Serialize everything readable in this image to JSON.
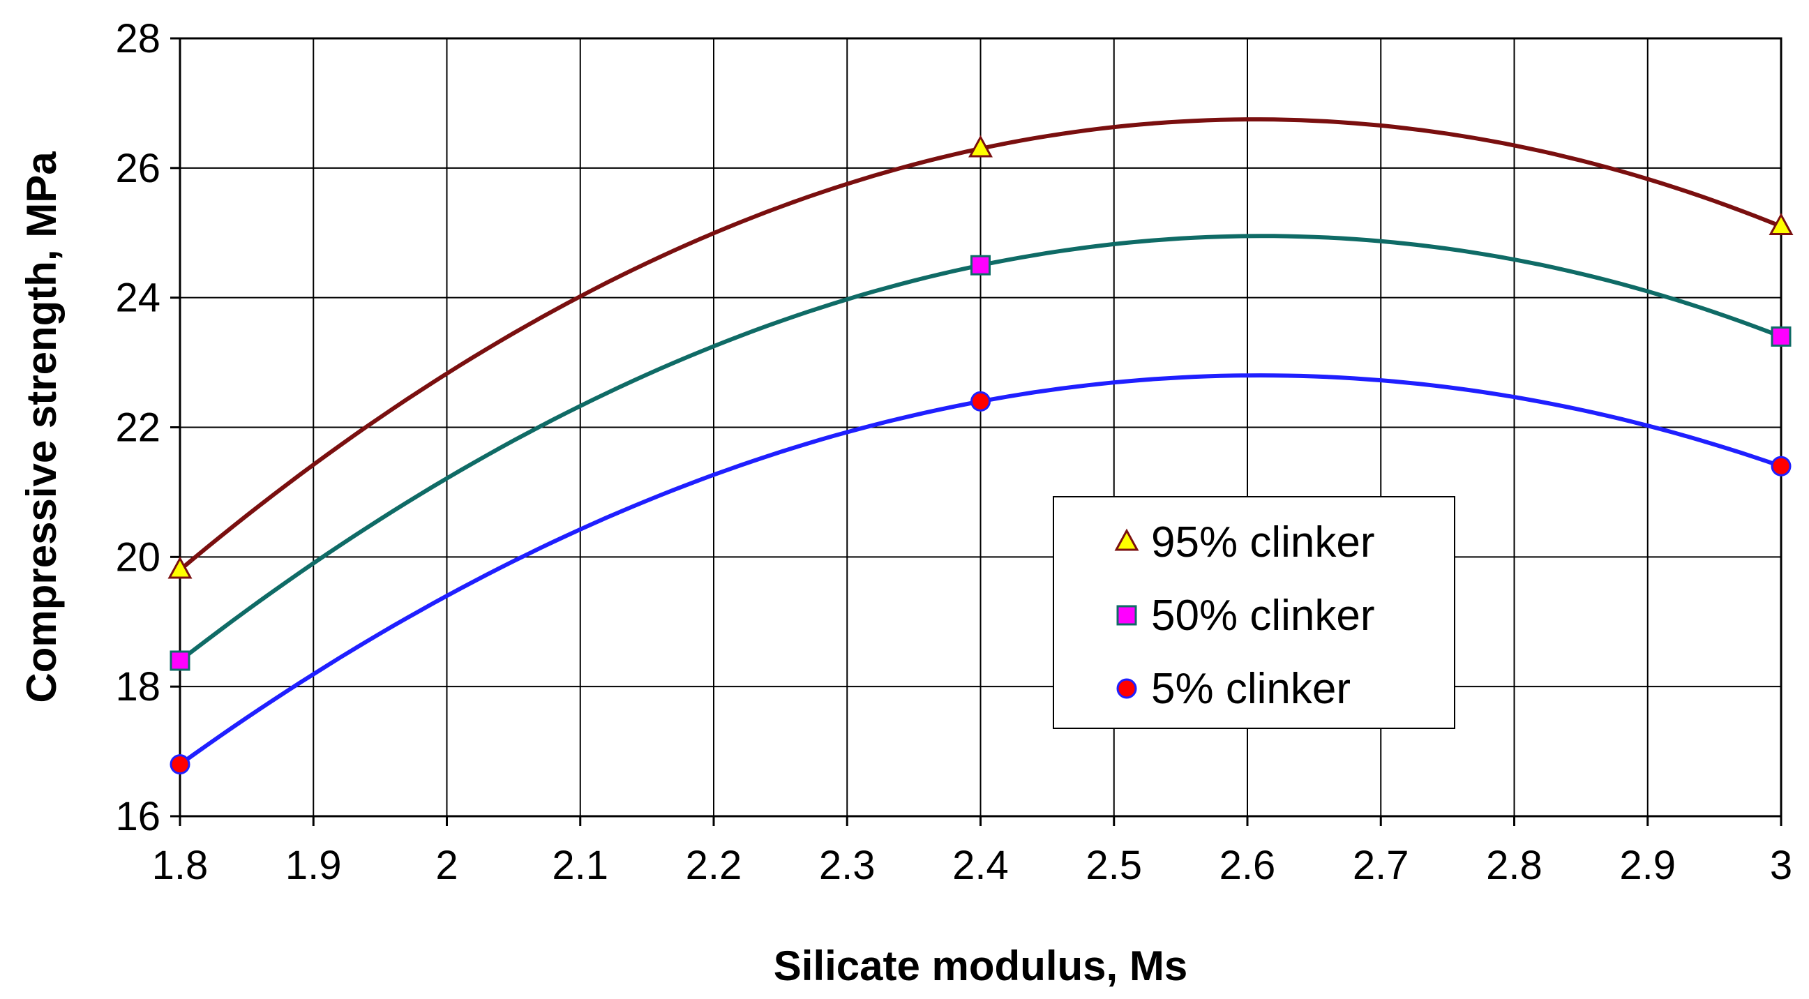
{
  "chart_data": {
    "type": "line",
    "title": "",
    "xlabel": "Silicate modulus, Ms",
    "ylabel": "Compressive strength, MPa",
    "xlim": [
      1.8,
      3.0
    ],
    "ylim": [
      16,
      28
    ],
    "xticks": [
      "1.8",
      "1.9",
      "2",
      "2.1",
      "2.2",
      "2.3",
      "2.4",
      "2.5",
      "2.6",
      "2.7",
      "2.8",
      "2.9",
      "3"
    ],
    "yticks": [
      "16",
      "18",
      "20",
      "22",
      "24",
      "26",
      "28"
    ],
    "grid": true,
    "legend_position": "center-right",
    "series": [
      {
        "name": "95% clinker",
        "line_color": "#7a0f0f",
        "marker": "triangle",
        "marker_fill": "#ffff00",
        "marker_edge": "#7a0f0f",
        "curve": {
          "x": [
            1.8,
            2.4,
            2.6,
            3.0
          ],
          "y": [
            19.8,
            26.3,
            26.75,
            25.1
          ]
        },
        "markers": {
          "x": [
            1.8,
            2.4,
            3.0
          ],
          "y": [
            19.8,
            26.3,
            25.1
          ]
        }
      },
      {
        "name": "50% clinker",
        "line_color": "#0f6b66",
        "marker": "square",
        "marker_fill": "#ff00ff",
        "marker_edge": "#0f6b66",
        "curve": {
          "x": [
            1.8,
            2.4,
            2.6,
            3.0
          ],
          "y": [
            18.4,
            24.5,
            24.95,
            23.4
          ]
        },
        "markers": {
          "x": [
            1.8,
            2.4,
            3.0
          ],
          "y": [
            18.4,
            24.5,
            23.4
          ]
        }
      },
      {
        "name": "5% clinker",
        "line_color": "#1f1fff",
        "marker": "circle",
        "marker_fill": "#ff0000",
        "marker_edge": "#1f1fff",
        "curve": {
          "x": [
            1.8,
            2.4,
            2.6,
            3.0
          ],
          "y": [
            16.8,
            22.4,
            22.8,
            21.4
          ]
        },
        "markers": {
          "x": [
            1.8,
            2.4,
            3.0
          ],
          "y": [
            16.8,
            22.4,
            21.4
          ]
        }
      }
    ]
  }
}
